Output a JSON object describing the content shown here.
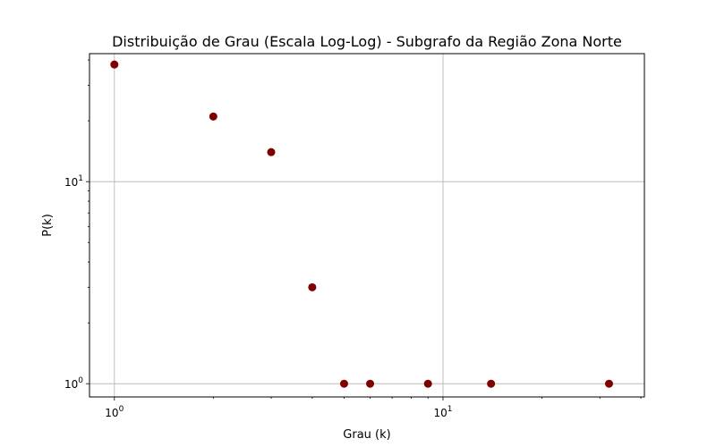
{
  "chart_data": {
    "type": "scatter",
    "title": "Distribuição de Grau (Escala Log-Log) - Subgrafo da Região Zona Norte",
    "xlabel": "Grau (k)",
    "ylabel": "P(k)",
    "x_scale": "log",
    "y_scale": "log",
    "xlim": [
      0.84,
      41
    ],
    "ylim": [
      0.86,
      43
    ],
    "grid": true,
    "marker_color": "#800000",
    "x_ticks": [
      {
        "value": 1,
        "base": "10",
        "exp": "0"
      },
      {
        "value": 10,
        "base": "10",
        "exp": "1"
      }
    ],
    "y_ticks": [
      {
        "value": 1,
        "base": "10",
        "exp": "0"
      },
      {
        "value": 10,
        "base": "10",
        "exp": "1"
      }
    ],
    "x": [
      1,
      2,
      3,
      4,
      5,
      6,
      9,
      14,
      32
    ],
    "y": [
      38,
      21,
      14,
      3,
      1,
      1,
      1,
      1,
      1
    ]
  }
}
